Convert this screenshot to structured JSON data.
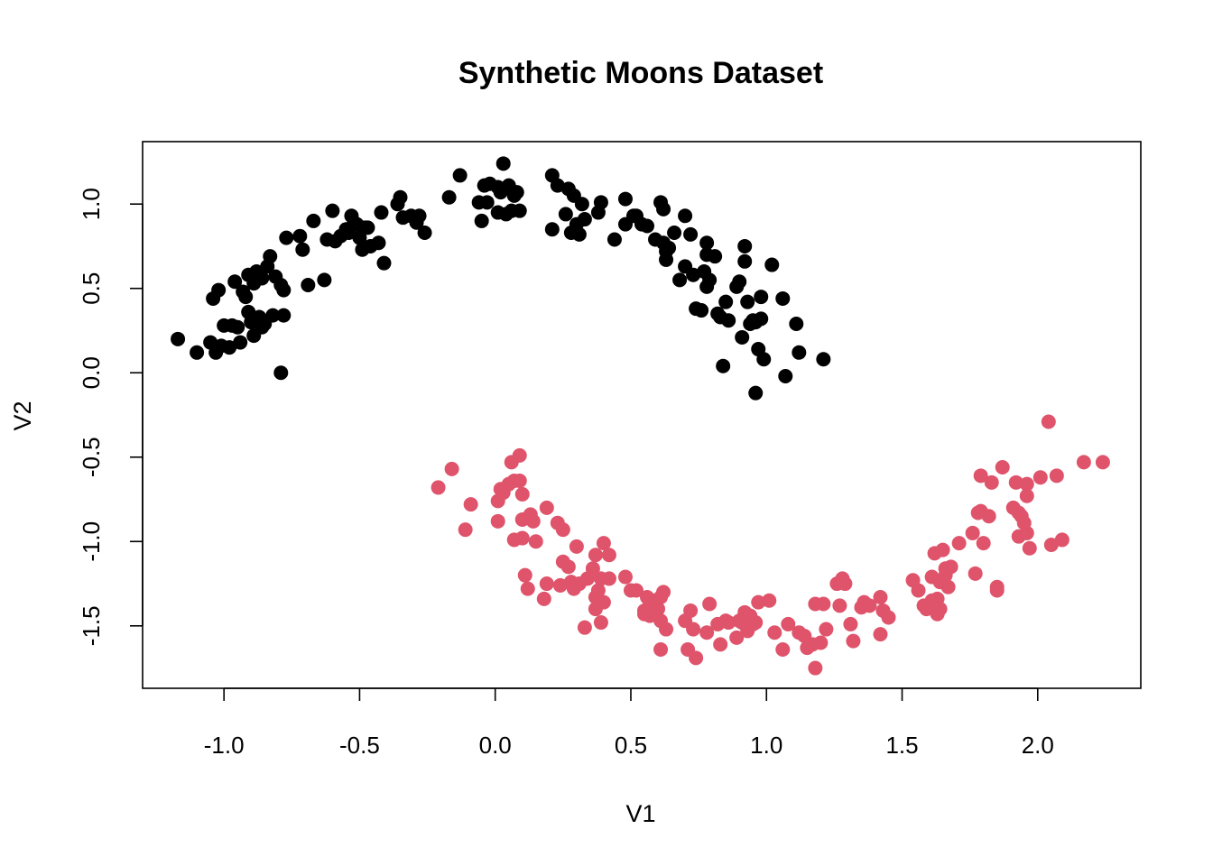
{
  "chart_data": {
    "type": "scatter",
    "title": "Synthetic Moons Dataset",
    "xlabel": "V1",
    "ylabel": "V2",
    "xlim": [
      -1.3,
      2.38
    ],
    "ylim": [
      -1.87,
      1.37
    ],
    "xticks": [
      "-1.0",
      "-0.5",
      "0.0",
      "0.5",
      "1.0",
      "1.5",
      "2.0"
    ],
    "yticks": [
      "-1.5",
      "-1.0",
      "-0.5",
      "0.0",
      "0.5",
      "1.0"
    ],
    "grid": false,
    "legend": "none",
    "series": [
      {
        "color": "#000000",
        "points": [
          [
            -1.17,
            0.2
          ],
          [
            -1.1,
            0.12
          ],
          [
            -1.05,
            0.18
          ],
          [
            -1.04,
            0.44
          ],
          [
            -1.03,
            0.12
          ],
          [
            -1.02,
            0.49
          ],
          [
            -1.01,
            0.16
          ],
          [
            -1.0,
            0.28
          ],
          [
            -0.98,
            0.15
          ],
          [
            -0.97,
            0.28
          ],
          [
            -0.96,
            0.54
          ],
          [
            -0.95,
            0.27
          ],
          [
            -0.94,
            0.18
          ],
          [
            -0.93,
            0.48
          ],
          [
            -0.92,
            0.45
          ],
          [
            -0.91,
            0.36
          ],
          [
            -0.91,
            0.58
          ],
          [
            -0.9,
            0.3
          ],
          [
            -0.89,
            0.22
          ],
          [
            -0.89,
            0.53
          ],
          [
            -0.88,
            0.6
          ],
          [
            -0.87,
            0.33
          ],
          [
            -0.86,
            0.56
          ],
          [
            -0.86,
            0.27
          ],
          [
            -0.85,
            0.29
          ],
          [
            -0.84,
            0.63
          ],
          [
            -0.83,
            0.69
          ],
          [
            -0.82,
            0.34
          ],
          [
            -0.81,
            0.57
          ],
          [
            -0.79,
            0.0
          ],
          [
            -0.79,
            0.52
          ],
          [
            -0.78,
            0.49
          ],
          [
            -0.78,
            0.34
          ],
          [
            -0.77,
            0.8
          ],
          [
            -0.72,
            0.81
          ],
          [
            -0.71,
            0.73
          ],
          [
            -0.69,
            0.52
          ],
          [
            -0.67,
            0.9
          ],
          [
            -0.63,
            0.55
          ],
          [
            -0.62,
            0.79
          ],
          [
            -0.6,
            0.96
          ],
          [
            -0.59,
            0.78
          ],
          [
            -0.57,
            0.81
          ],
          [
            -0.55,
            0.85
          ],
          [
            -0.54,
            0.83
          ],
          [
            -0.53,
            0.93
          ],
          [
            -0.52,
            0.89
          ],
          [
            -0.51,
            0.88
          ],
          [
            -0.5,
            0.8
          ],
          [
            -0.49,
            0.73
          ],
          [
            -0.48,
            0.86
          ],
          [
            -0.47,
            0.86
          ],
          [
            -0.46,
            0.75
          ],
          [
            -0.43,
            0.77
          ],
          [
            -0.42,
            0.95
          ],
          [
            -0.41,
            0.65
          ],
          [
            -0.36,
            1.0
          ],
          [
            -0.35,
            1.04
          ],
          [
            -0.34,
            0.92
          ],
          [
            -0.31,
            0.93
          ],
          [
            -0.29,
            0.89
          ],
          [
            -0.28,
            0.93
          ],
          [
            -0.26,
            0.83
          ],
          [
            -0.17,
            1.04
          ],
          [
            -0.13,
            1.17
          ],
          [
            -0.06,
            1.01
          ],
          [
            -0.05,
            0.9
          ],
          [
            -0.04,
            1.11
          ],
          [
            -0.03,
            1.01
          ],
          [
            -0.02,
            1.12
          ],
          [
            0.01,
            0.95
          ],
          [
            0.01,
            1.1
          ],
          [
            0.02,
            1.07
          ],
          [
            0.03,
            1.24
          ],
          [
            0.04,
            0.94
          ],
          [
            0.05,
            1.11
          ],
          [
            0.06,
            0.96
          ],
          [
            0.07,
            1.05
          ],
          [
            0.08,
            1.07
          ],
          [
            0.09,
            0.96
          ],
          [
            0.21,
            1.17
          ],
          [
            0.21,
            0.85
          ],
          [
            0.23,
            1.11
          ],
          [
            0.26,
            0.94
          ],
          [
            0.27,
            1.09
          ],
          [
            0.28,
            0.83
          ],
          [
            0.29,
            1.05
          ],
          [
            0.3,
            0.88
          ],
          [
            0.31,
            0.82
          ],
          [
            0.32,
            1.0
          ],
          [
            0.33,
            0.91
          ],
          [
            0.38,
            0.95
          ],
          [
            0.39,
            1.01
          ],
          [
            0.44,
            0.79
          ],
          [
            0.48,
            1.03
          ],
          [
            0.48,
            0.88
          ],
          [
            0.51,
            0.93
          ],
          [
            0.52,
            0.93
          ],
          [
            0.54,
            0.88
          ],
          [
            0.56,
            0.87
          ],
          [
            0.59,
            0.79
          ],
          [
            0.61,
            1.01
          ],
          [
            0.62,
            0.77
          ],
          [
            0.62,
            0.97
          ],
          [
            0.63,
            0.72
          ],
          [
            0.63,
            0.67
          ],
          [
            0.64,
            0.74
          ],
          [
            0.66,
            0.83
          ],
          [
            0.68,
            0.55
          ],
          [
            0.7,
            0.63
          ],
          [
            0.7,
            0.93
          ],
          [
            0.72,
            0.82
          ],
          [
            0.73,
            0.58
          ],
          [
            0.74,
            0.38
          ],
          [
            0.76,
            0.37
          ],
          [
            0.77,
            0.6
          ],
          [
            0.78,
            0.77
          ],
          [
            0.78,
            0.51
          ],
          [
            0.78,
            0.7
          ],
          [
            0.79,
            0.55
          ],
          [
            0.81,
            0.69
          ],
          [
            0.82,
            0.35
          ],
          [
            0.83,
            0.33
          ],
          [
            0.84,
            0.04
          ],
          [
            0.85,
            0.42
          ],
          [
            0.86,
            0.31
          ],
          [
            0.89,
            0.51
          ],
          [
            0.9,
            0.54
          ],
          [
            0.91,
            0.21
          ],
          [
            0.92,
            0.75
          ],
          [
            0.92,
            0.66
          ],
          [
            0.93,
            0.42
          ],
          [
            0.94,
            0.29
          ],
          [
            0.95,
            0.31
          ],
          [
            0.96,
            0.3
          ],
          [
            0.96,
            -0.12
          ],
          [
            0.97,
            0.14
          ],
          [
            0.98,
            0.45
          ],
          [
            0.98,
            0.32
          ],
          [
            0.99,
            0.08
          ],
          [
            1.02,
            0.64
          ],
          [
            1.06,
            0.44
          ],
          [
            1.07,
            -0.02
          ],
          [
            1.11,
            0.29
          ],
          [
            1.12,
            0.12
          ],
          [
            1.21,
            0.08
          ]
        ]
      },
      {
        "color": "#DF536B",
        "points": [
          [
            -0.21,
            -0.68
          ],
          [
            -0.16,
            -0.57
          ],
          [
            -0.11,
            -0.93
          ],
          [
            -0.09,
            -0.78
          ],
          [
            0.01,
            -0.88
          ],
          [
            0.01,
            -0.76
          ],
          [
            0.02,
            -0.69
          ],
          [
            0.03,
            -0.71
          ],
          [
            0.05,
            -0.66
          ],
          [
            0.06,
            -0.53
          ],
          [
            0.07,
            -0.64
          ],
          [
            0.07,
            -0.99
          ],
          [
            0.09,
            -0.64
          ],
          [
            0.09,
            -0.49
          ],
          [
            0.1,
            -0.98
          ],
          [
            0.1,
            -0.72
          ],
          [
            0.1,
            -0.87
          ],
          [
            0.11,
            -1.2
          ],
          [
            0.12,
            -1.28
          ],
          [
            0.13,
            -0.84
          ],
          [
            0.14,
            -0.88
          ],
          [
            0.15,
            -1.0
          ],
          [
            0.18,
            -1.34
          ],
          [
            0.19,
            -0.8
          ],
          [
            0.19,
            -1.25
          ],
          [
            0.23,
            -0.89
          ],
          [
            0.24,
            -1.26
          ],
          [
            0.25,
            -0.93
          ],
          [
            0.25,
            -1.12
          ],
          [
            0.27,
            -1.15
          ],
          [
            0.28,
            -1.24
          ],
          [
            0.29,
            -1.28
          ],
          [
            0.3,
            -1.03
          ],
          [
            0.31,
            -1.25
          ],
          [
            0.33,
            -1.51
          ],
          [
            0.34,
            -1.22
          ],
          [
            0.36,
            -1.16
          ],
          [
            0.37,
            -1.08
          ],
          [
            0.37,
            -1.33
          ],
          [
            0.37,
            -1.4
          ],
          [
            0.38,
            -1.29
          ],
          [
            0.39,
            -1.22
          ],
          [
            0.39,
            -1.48
          ],
          [
            0.4,
            -1.01
          ],
          [
            0.4,
            -1.36
          ],
          [
            0.42,
            -1.08
          ],
          [
            0.42,
            -1.22
          ],
          [
            0.48,
            -1.21
          ],
          [
            0.5,
            -1.29
          ],
          [
            0.52,
            -1.29
          ],
          [
            0.55,
            -1.41
          ],
          [
            0.55,
            -1.43
          ],
          [
            0.56,
            -1.33
          ],
          [
            0.57,
            -1.37
          ],
          [
            0.57,
            -1.44
          ],
          [
            0.58,
            -1.39
          ],
          [
            0.59,
            -1.35
          ],
          [
            0.6,
            -1.4
          ],
          [
            0.61,
            -1.47
          ],
          [
            0.61,
            -1.33
          ],
          [
            0.61,
            -1.64
          ],
          [
            0.62,
            -1.3
          ],
          [
            0.63,
            -1.52
          ],
          [
            0.7,
            -1.47
          ],
          [
            0.71,
            -1.64
          ],
          [
            0.72,
            -1.41
          ],
          [
            0.73,
            -1.52
          ],
          [
            0.74,
            -1.69
          ],
          [
            0.78,
            -1.54
          ],
          [
            0.79,
            -1.37
          ],
          [
            0.82,
            -1.49
          ],
          [
            0.83,
            -1.61
          ],
          [
            0.85,
            -1.47
          ],
          [
            0.86,
            -1.48
          ],
          [
            0.89,
            -1.57
          ],
          [
            0.9,
            -1.47
          ],
          [
            0.91,
            -1.48
          ],
          [
            0.92,
            -1.42
          ],
          [
            0.93,
            -1.53
          ],
          [
            0.94,
            -1.44
          ],
          [
            0.95,
            -1.49
          ],
          [
            0.96,
            -1.48
          ],
          [
            0.97,
            -1.36
          ],
          [
            1.01,
            -1.35
          ],
          [
            1.03,
            -1.54
          ],
          [
            1.06,
            -1.64
          ],
          [
            1.08,
            -1.49
          ],
          [
            1.12,
            -1.54
          ],
          [
            1.14,
            -1.56
          ],
          [
            1.15,
            -1.63
          ],
          [
            1.17,
            -1.61
          ],
          [
            1.18,
            -1.75
          ],
          [
            1.18,
            -1.37
          ],
          [
            1.2,
            -1.6
          ],
          [
            1.21,
            -1.37
          ],
          [
            1.22,
            -1.52
          ],
          [
            1.26,
            -1.25
          ],
          [
            1.27,
            -1.38
          ],
          [
            1.28,
            -1.22
          ],
          [
            1.29,
            -1.25
          ],
          [
            1.31,
            -1.49
          ],
          [
            1.32,
            -1.59
          ],
          [
            1.35,
            -1.39
          ],
          [
            1.36,
            -1.36
          ],
          [
            1.38,
            -1.38
          ],
          [
            1.42,
            -1.33
          ],
          [
            1.42,
            -1.55
          ],
          [
            1.43,
            -1.41
          ],
          [
            1.45,
            -1.45
          ],
          [
            1.54,
            -1.23
          ],
          [
            1.56,
            -1.29
          ],
          [
            1.58,
            -1.38
          ],
          [
            1.59,
            -1.4
          ],
          [
            1.61,
            -1.35
          ],
          [
            1.61,
            -1.21
          ],
          [
            1.62,
            -1.07
          ],
          [
            1.63,
            -1.34
          ],
          [
            1.63,
            -1.43
          ],
          [
            1.64,
            -1.4
          ],
          [
            1.64,
            -1.24
          ],
          [
            1.65,
            -1.05
          ],
          [
            1.66,
            -1.16
          ],
          [
            1.66,
            -1.2
          ],
          [
            1.67,
            -1.27
          ],
          [
            1.68,
            -1.15
          ],
          [
            1.71,
            -1.01
          ],
          [
            1.76,
            -0.95
          ],
          [
            1.77,
            -1.19
          ],
          [
            1.78,
            -0.83
          ],
          [
            1.79,
            -0.61
          ],
          [
            1.79,
            -0.82
          ],
          [
            1.8,
            -1.01
          ],
          [
            1.82,
            -0.85
          ],
          [
            1.83,
            -0.65
          ],
          [
            1.85,
            -1.27
          ],
          [
            1.85,
            -1.29
          ],
          [
            1.87,
            -0.56
          ],
          [
            1.91,
            -0.8
          ],
          [
            1.92,
            -0.65
          ],
          [
            1.93,
            -0.83
          ],
          [
            1.93,
            -0.97
          ],
          [
            1.94,
            -0.85
          ],
          [
            1.95,
            -0.89
          ],
          [
            1.96,
            -0.95
          ],
          [
            1.96,
            -0.66
          ],
          [
            1.96,
            -0.73
          ],
          [
            1.97,
            -1.04
          ],
          [
            2.01,
            -0.62
          ],
          [
            2.04,
            -0.29
          ],
          [
            2.05,
            -1.02
          ],
          [
            2.07,
            -0.61
          ],
          [
            2.09,
            -0.99
          ],
          [
            2.17,
            -0.53
          ],
          [
            2.24,
            -0.53
          ]
        ]
      }
    ]
  }
}
